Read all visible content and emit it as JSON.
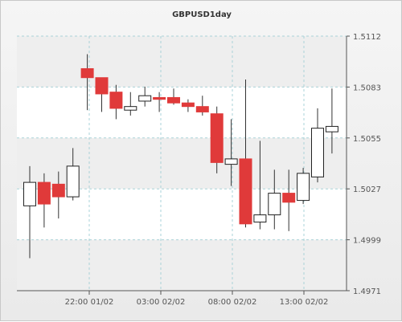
{
  "chart_data": {
    "type": "candlestick",
    "title": "GBPUSD1day",
    "y_ticks": [
      "1.5112",
      "1.5083",
      "1.5055",
      "1.5027",
      "1.4999",
      "1.4971"
    ],
    "ylim": [
      1.4971,
      1.5112
    ],
    "x_ticks": [
      "22:00 01/02",
      "03:00 02/02",
      "08:00 02/02",
      "13:00 02/02"
    ],
    "colors": {
      "up": "#ffffff",
      "down": "#e03a3a",
      "wick": "#333333",
      "grid": "#aad3d8",
      "plot_band": "#f6f6f6"
    },
    "candles": [
      {
        "o": 1.5018,
        "h": 1.504,
        "l": 1.4989,
        "c": 1.5031
      },
      {
        "o": 1.5031,
        "h": 1.5036,
        "l": 1.5006,
        "c": 1.5019
      },
      {
        "o": 1.503,
        "h": 1.5037,
        "l": 1.5011,
        "c": 1.5023
      },
      {
        "o": 1.5023,
        "h": 1.505,
        "l": 1.5021,
        "c": 1.504
      },
      {
        "o": 1.5094,
        "h": 1.5102,
        "l": 1.5071,
        "c": 1.5089
      },
      {
        "o": 1.5089,
        "h": 1.5089,
        "l": 1.507,
        "c": 1.508
      },
      {
        "o": 1.5081,
        "h": 1.5085,
        "l": 1.5066,
        "c": 1.5072
      },
      {
        "o": 1.5071,
        "h": 1.5081,
        "l": 1.5068,
        "c": 1.5073
      },
      {
        "o": 1.5076,
        "h": 1.5084,
        "l": 1.5073,
        "c": 1.5079
      },
      {
        "o": 1.5078,
        "h": 1.5081,
        "l": 1.507,
        "c": 1.5077
      },
      {
        "o": 1.5078,
        "h": 1.5083,
        "l": 1.5074,
        "c": 1.5075
      },
      {
        "o": 1.5075,
        "h": 1.5077,
        "l": 1.507,
        "c": 1.5073
      },
      {
        "o": 1.5073,
        "h": 1.5079,
        "l": 1.5068,
        "c": 1.507
      },
      {
        "o": 1.5069,
        "h": 1.5073,
        "l": 1.5036,
        "c": 1.5042
      },
      {
        "o": 1.5041,
        "h": 1.5066,
        "l": 1.5029,
        "c": 1.5044
      },
      {
        "o": 1.5044,
        "h": 1.5088,
        "l": 1.5006,
        "c": 1.5008
      },
      {
        "o": 1.5009,
        "h": 1.5054,
        "l": 1.5005,
        "c": 1.5013
      },
      {
        "o": 1.5013,
        "h": 1.5038,
        "l": 1.5005,
        "c": 1.5025
      },
      {
        "o": 1.5025,
        "h": 1.5038,
        "l": 1.5004,
        "c": 1.502
      },
      {
        "o": 1.5021,
        "h": 1.5039,
        "l": 1.5019,
        "c": 1.5036
      },
      {
        "o": 1.5034,
        "h": 1.5072,
        "l": 1.5031,
        "c": 1.5061
      },
      {
        "o": 1.5059,
        "h": 1.5083,
        "l": 1.5047,
        "c": 1.5062
      }
    ]
  }
}
